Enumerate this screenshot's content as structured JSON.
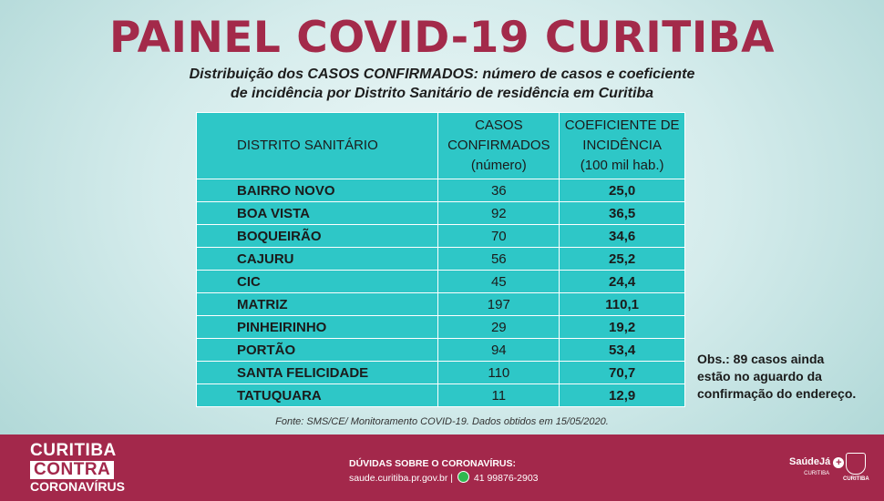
{
  "title": "PAINEL COVID-19 CURITIBA",
  "subtitle_line1": "Distribuição dos CASOS CONFIRMADOS: número de casos e coeficiente",
  "subtitle_line2": "de incidência por Distrito Sanitário de residência em Curitiba",
  "table": {
    "headers": {
      "district": "DISTRITO SANITÁRIO",
      "cases": [
        "CASOS",
        "CONFIRMADOS",
        "(número)"
      ],
      "coef": [
        "COEFICIENTE DE",
        "INCIDÊNCIA",
        "(100 mil hab.)"
      ]
    },
    "rows": [
      {
        "district": "BAIRRO NOVO",
        "cases": "36",
        "coef": "25,0"
      },
      {
        "district": "BOA VISTA",
        "cases": "92",
        "coef": "36,5"
      },
      {
        "district": "BOQUEIRÃO",
        "cases": "70",
        "coef": "34,6"
      },
      {
        "district": "CAJURU",
        "cases": "56",
        "coef": "25,2"
      },
      {
        "district": "CIC",
        "cases": "45",
        "coef": "24,4"
      },
      {
        "district": "MATRIZ",
        "cases": "197",
        "coef": "110,1"
      },
      {
        "district": "PINHEIRINHO",
        "cases": "29",
        "coef": "19,2"
      },
      {
        "district": "PORTÃO",
        "cases": "94",
        "coef": "53,4"
      },
      {
        "district": "SANTA FELICIDADE",
        "cases": "110",
        "coef": "70,7"
      },
      {
        "district": "TATUQUARA",
        "cases": "11",
        "coef": "12,9"
      }
    ]
  },
  "obs": [
    "Obs.: 89 casos ainda",
    "estão no aguardo da",
    "confirmação do endereço."
  ],
  "source": "Fonte: SMS/CE/ Monitoramento COVID-19. Dados obtidos em 15/05/2020.",
  "footer": {
    "brand": [
      "CURITIBA",
      "CONTRA",
      "CORONAVÍRUS"
    ],
    "faq_title": "DÚVIDAS SOBRE O CORONAVÍRUS:",
    "faq_site": "saude.curitiba.pr.gov.br |",
    "faq_phone": "41 99876-2903",
    "logo_saude": "SaúdeJá",
    "logo_saude_sub": "CURITIBA",
    "logo_city": "CURITIBA",
    "colors": {
      "brand": "#a3284b",
      "table": "#2ec7c7",
      "whatsapp": "#2fb84f"
    }
  }
}
